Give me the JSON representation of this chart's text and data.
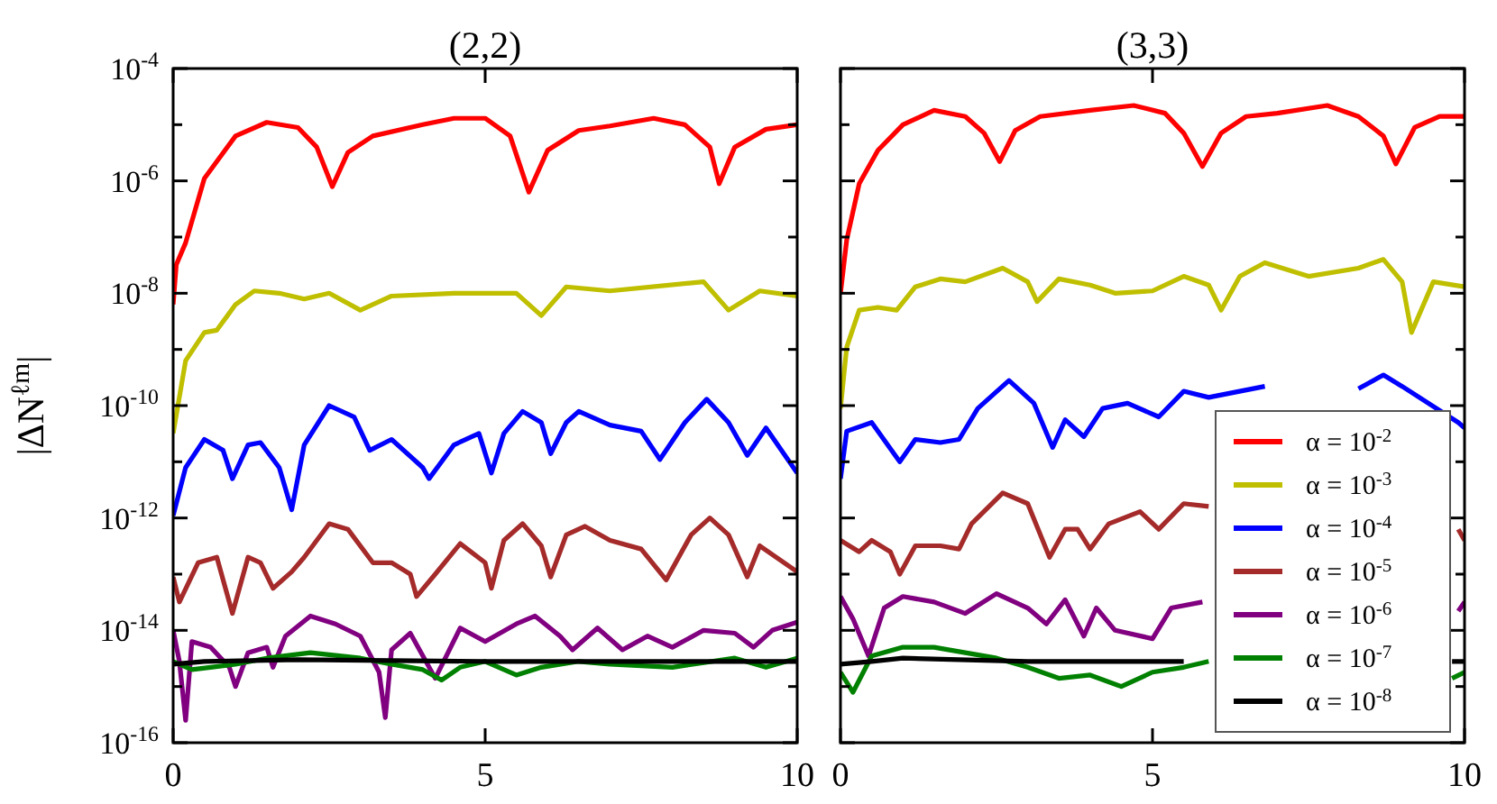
{
  "chart_data": [
    {
      "type": "line",
      "title": "(2,2)",
      "ylabel": "|ΔN$^{ℓm}$|",
      "log": "y",
      "xlim": [
        0,
        10
      ],
      "xticks": [
        0,
        5,
        10
      ],
      "ylim": [
        1e-16,
        0.0001
      ],
      "yticks": [
        {
          "value": 1e-16,
          "label": "10$^{-16}$"
        },
        {
          "value": 1e-15,
          "label": null
        },
        {
          "value": 1e-14,
          "label": "10$^{-14}$"
        },
        {
          "value": 1e-13,
          "label": null
        },
        {
          "value": 1e-12,
          "label": "10$^{-12}$"
        },
        {
          "value": 1e-11,
          "label": null
        },
        {
          "value": 1e-10,
          "label": "10$^{-10}$"
        },
        {
          "value": 1e-09,
          "label": null
        },
        {
          "value": 1e-08,
          "label": "10$^{-8}$"
        },
        {
          "value": 1e-07,
          "label": null
        },
        {
          "value": 1e-06,
          "label": "10$^{-6}$"
        },
        {
          "value": 1e-05,
          "label": null
        },
        {
          "value": 0.0001,
          "label": "10$^{-4}$"
        }
      ],
      "series": [
        {
          "color": "#ff0000",
          "x": [
            0,
            0.05,
            0.2,
            0.5,
            1,
            1.5,
            2,
            2.3,
            2.55,
            2.8,
            3.2,
            4,
            4.5,
            5,
            5.4,
            5.7,
            6,
            6.5,
            7,
            7.7,
            8.2,
            8.6,
            8.75,
            9,
            9.5,
            10
          ],
          "values": [
            6.3e-09,
            3.2e-08,
            7.9e-08,
            1.1e-06,
            6.3e-06,
            1.1e-05,
            8.9e-06,
            4e-06,
            7.9e-07,
            3.2e-06,
            6.3e-06,
            1e-05,
            1.3e-05,
            1.3e-05,
            6.3e-06,
            6.3e-07,
            3.5e-06,
            7.9e-06,
            9.5e-06,
            1.3e-05,
            1e-05,
            4e-06,
            8.9e-07,
            4e-06,
            8.3e-06,
            1e-05
          ]
        },
        {
          "color": "#bfbf00",
          "x": [
            0,
            0.2,
            0.5,
            0.7,
            1,
            1.3,
            1.7,
            2.1,
            2.5,
            3,
            3.5,
            4.5,
            5.5,
            5.9,
            6.3,
            7,
            8.5,
            8.9,
            9.4,
            10
          ],
          "values": [
            3.2e-11,
            6.3e-10,
            2e-09,
            2.2e-09,
            6.3e-09,
            1.1e-08,
            1e-08,
            7.9e-09,
            1e-08,
            5e-09,
            8.9e-09,
            1e-08,
            1e-08,
            4e-09,
            1.3e-08,
            1.1e-08,
            1.6e-08,
            5e-09,
            1.1e-08,
            8.9e-09
          ]
        },
        {
          "color": "#0000ff",
          "x": [
            0,
            0.2,
            0.5,
            0.8,
            0.95,
            1.2,
            1.4,
            1.7,
            1.9,
            2.1,
            2.5,
            2.9,
            3.15,
            3.5,
            4,
            4.1,
            4.5,
            4.9,
            5.1,
            5.3,
            5.6,
            5.9,
            6.05,
            6.3,
            6.5,
            7,
            7.5,
            7.8,
            8.2,
            8.55,
            8.9,
            9.2,
            9.5,
            10
          ],
          "values": [
            1.1e-12,
            7.9e-12,
            2.5e-11,
            1.6e-11,
            5e-12,
            2e-11,
            2.2e-11,
            7.9e-12,
            1.4e-12,
            2e-11,
            1e-10,
            6.3e-11,
            1.6e-11,
            2.5e-11,
            7.9e-12,
            5e-12,
            2e-11,
            3.2e-11,
            6.3e-12,
            3.2e-11,
            7.9e-11,
            5e-11,
            1.4e-11,
            5e-11,
            7.9e-11,
            4.5e-11,
            3.5e-11,
            1.1e-11,
            5e-11,
            1.3e-10,
            5e-11,
            1.3e-11,
            4e-11,
            6.3e-12
          ]
        },
        {
          "color": "#a52a2a",
          "x": [
            0,
            0.1,
            0.4,
            0.7,
            0.95,
            1.2,
            1.4,
            1.6,
            1.9,
            2.1,
            2.5,
            2.8,
            3.2,
            3.5,
            3.8,
            3.9,
            4.2,
            4.6,
            5,
            5.1,
            5.3,
            5.6,
            5.9,
            6.05,
            6.3,
            6.6,
            7,
            7.5,
            7.9,
            8.3,
            8.6,
            8.9,
            9.2,
            9.4,
            10
          ],
          "values": [
            8.9e-14,
            3.2e-14,
            1.6e-13,
            2e-13,
            2e-14,
            2e-13,
            1.6e-13,
            5.6e-14,
            1.1e-13,
            2e-13,
            7.9e-13,
            6.3e-13,
            1.6e-13,
            1.6e-13,
            1e-13,
            4e-14,
            1e-13,
            3.5e-13,
            1.6e-13,
            5.6e-14,
            4e-13,
            7.9e-13,
            3.2e-13,
            8.9e-14,
            5e-13,
            7.1e-13,
            4e-13,
            2.8e-13,
            7.9e-14,
            5e-13,
            1e-12,
            5e-13,
            8.9e-14,
            3.2e-13,
            1.1e-13
          ]
        },
        {
          "color": "#800080",
          "x": [
            0,
            0.1,
            0.2,
            0.3,
            0.6,
            0.9,
            1,
            1.2,
            1.5,
            1.6,
            1.8,
            2.2,
            2.6,
            3,
            3.3,
            3.4,
            3.5,
            3.8,
            4.2,
            4.6,
            5,
            5.5,
            5.8,
            6.2,
            6.4,
            6.8,
            7.2,
            7.6,
            8,
            8.5,
            9,
            9.3,
            9.6,
            10
          ],
          "values": [
            1e-14,
            2.8e-15,
            2.5e-16,
            6.3e-15,
            5e-15,
            2.2e-15,
            1e-15,
            4e-15,
            5e-15,
            2.2e-15,
            7.9e-15,
            1.8e-14,
            1.3e-14,
            7.9e-15,
            1.8e-15,
            2.8e-16,
            4.5e-15,
            8.9e-15,
            1.4e-15,
            1.1e-14,
            6.3e-15,
            1.3e-14,
            1.8e-14,
            7.9e-15,
            4.5e-15,
            1.1e-14,
            4.5e-15,
            7.9e-15,
            5e-15,
            1e-14,
            8.9e-15,
            5e-15,
            1e-14,
            1.4e-14
          ]
        },
        {
          "color": "#008000",
          "x": [
            0,
            0.3,
            0.6,
            1,
            1.5,
            2.2,
            3,
            3.5,
            4,
            4.3,
            4.6,
            5,
            5.5,
            5.9,
            6.5,
            7,
            8,
            9,
            9.5,
            10
          ],
          "values": [
            2.8e-15,
            2e-15,
            2.2e-15,
            2.5e-15,
            3.2e-15,
            4e-15,
            3.2e-15,
            2.5e-15,
            2e-15,
            1.3e-15,
            2.2e-15,
            2.8e-15,
            1.6e-15,
            2.2e-15,
            2.8e-15,
            2.5e-15,
            2.2e-15,
            3.2e-15,
            2.2e-15,
            3.2e-15
          ]
        },
        {
          "color": "#000000",
          "x": [
            0,
            0.5,
            2,
            5,
            8,
            10
          ],
          "values": [
            2.5e-15,
            2.8e-15,
            3e-15,
            2.8e-15,
            2.8e-15,
            2.8e-15
          ]
        }
      ]
    },
    {
      "type": "line",
      "title": "(3,3)",
      "log": "y",
      "tick_labels": "x",
      "legend": "bottom right",
      "xlim": [
        0,
        10
      ],
      "xticks": [
        0,
        5,
        10
      ],
      "ylim": [
        1e-16,
        0.0001
      ],
      "yticks": [
        {
          "value": 1e-16,
          "label": null
        },
        {
          "value": 1e-15,
          "label": null
        },
        {
          "value": 1e-14,
          "label": null
        },
        {
          "value": 1e-13,
          "label": null
        },
        {
          "value": 1e-12,
          "label": null
        },
        {
          "value": 1e-11,
          "label": null
        },
        {
          "value": 1e-10,
          "label": null
        },
        {
          "value": 1e-09,
          "label": null
        },
        {
          "value": 1e-08,
          "label": null
        },
        {
          "value": 1e-07,
          "label": null
        },
        {
          "value": 1e-06,
          "label": null
        },
        {
          "value": 1e-05,
          "label": null
        },
        {
          "value": 0.0001,
          "label": null
        }
      ],
      "series": [
        {
          "name": "α = 10$^{-2}$",
          "color": "#ff0000",
          "x": [
            0,
            0.1,
            0.3,
            0.6,
            1,
            1.5,
            2,
            2.3,
            2.55,
            2.8,
            3.2,
            4,
            4.7,
            5.2,
            5.5,
            5.8,
            6.1,
            6.5,
            7,
            7.8,
            8.3,
            8.7,
            8.9,
            9.2,
            9.6,
            10
          ],
          "values": [
            1e-08,
            8.9e-08,
            8.9e-07,
            3.5e-06,
            1e-05,
            1.8e-05,
            1.4e-05,
            7.1e-06,
            2.2e-06,
            7.9e-06,
            1.4e-05,
            1.8e-05,
            2.2e-05,
            1.6e-05,
            7.1e-06,
            1.8e-06,
            7.1e-06,
            1.4e-05,
            1.6e-05,
            2.2e-05,
            1.4e-05,
            6.3e-06,
            2e-06,
            8.9e-06,
            1.4e-05,
            1.4e-05
          ]
        },
        {
          "name": "α = 10$^{-3}$",
          "color": "#bfbf00",
          "x": [
            0,
            0.1,
            0.3,
            0.6,
            0.9,
            1.2,
            1.6,
            2,
            2.6,
            3,
            3.15,
            3.5,
            4,
            4.4,
            5,
            5.5,
            5.9,
            6.1,
            6.4,
            6.8,
            7.5,
            8.3,
            8.7,
            9,
            9.15,
            9.5,
            10
          ],
          "values": [
            8.9e-11,
            1.1e-09,
            5e-09,
            5.6e-09,
            5e-09,
            1.3e-08,
            1.8e-08,
            1.6e-08,
            2.8e-08,
            1.6e-08,
            7.1e-09,
            1.8e-08,
            1.4e-08,
            1e-08,
            1.1e-08,
            2e-08,
            1.4e-08,
            5e-09,
            2e-08,
            3.5e-08,
            2e-08,
            2.8e-08,
            4e-08,
            1.6e-08,
            2e-09,
            1.6e-08,
            1.3e-08
          ]
        },
        {
          "name": "α = 10$^{-4}$",
          "color": "#0000ff",
          "x": [
            0,
            0.1,
            0.5,
            0.95,
            1.2,
            1.6,
            1.9,
            2.2,
            2.7,
            3.1,
            3.4,
            3.6,
            3.9,
            4.2,
            4.6,
            5.1,
            5.5,
            5.9,
            6.8,
            7.5,
            8.3,
            8.7,
            9,
            9.9,
            10
          ],
          "values": [
            5e-12,
            3.5e-11,
            5e-11,
            1e-11,
            2.5e-11,
            2.2e-11,
            2.5e-11,
            8.9e-11,
            2.8e-10,
            1.1e-10,
            1.8e-11,
            5.6e-11,
            2.8e-11,
            8.9e-11,
            1.1e-10,
            6.3e-11,
            1.8e-10,
            1.4e-10,
            2.2e-10,
            null,
            2e-10,
            3.5e-10,
            2.2e-10,
            5e-11,
            4e-11
          ]
        },
        {
          "name": "α = 10$^{-5}$",
          "color": "#a52a2a",
          "x": [
            0,
            0.3,
            0.5,
            0.8,
            0.95,
            1.2,
            1.6,
            1.9,
            2.1,
            2.6,
            3,
            3.35,
            3.6,
            3.8,
            4,
            4.3,
            4.8,
            5.1,
            5.5,
            5.9,
            6.2,
            9.9,
            10
          ],
          "values": [
            4e-13,
            2.5e-13,
            4e-13,
            2.5e-13,
            1e-13,
            3.2e-13,
            3.2e-13,
            2.8e-13,
            7.9e-13,
            2.8e-12,
            1.8e-12,
            2e-13,
            6.3e-13,
            6.3e-13,
            2.8e-13,
            7.9e-13,
            1.3e-12,
            6.3e-13,
            1.8e-12,
            1.6e-12,
            null,
            6.3e-13,
            4e-13
          ]
        },
        {
          "name": "α = 10$^{-6}$",
          "color": "#800080",
          "x": [
            0,
            0.2,
            0.45,
            0.7,
            1,
            1.5,
            2,
            2.5,
            3,
            3.3,
            3.6,
            3.9,
            4.1,
            4.4,
            5,
            5.3,
            5.8,
            6.2,
            9.9,
            10
          ],
          "values": [
            4e-14,
            1.6e-14,
            3.5e-15,
            2.5e-14,
            4e-14,
            3.2e-14,
            2e-14,
            4.5e-14,
            2.5e-14,
            1.3e-14,
            3.5e-14,
            7.9e-15,
            2.5e-14,
            1e-14,
            7.1e-15,
            2.5e-14,
            3.2e-14,
            null,
            2.2e-14,
            3.2e-14
          ]
        },
        {
          "name": "α = 10$^{-7}$",
          "color": "#008000",
          "x": [
            0,
            0.2,
            0.5,
            1,
            1.5,
            2,
            2.5,
            3,
            3.5,
            4,
            4.5,
            5,
            5.5,
            5.9,
            6.2,
            9.8,
            10
          ],
          "values": [
            1.8e-15,
            7.9e-16,
            3.5e-15,
            5e-15,
            5e-15,
            4e-15,
            3.2e-15,
            2.2e-15,
            1.4e-15,
            1.6e-15,
            1e-15,
            1.8e-15,
            2.2e-15,
            2.8e-15,
            null,
            1.4e-15,
            1.8e-15
          ]
        },
        {
          "name": "α = 10$^{-8}$",
          "color": "#000000",
          "x": [
            0,
            0.5,
            1,
            3,
            5.5,
            6.2,
            9.8,
            10
          ],
          "values": [
            2.5e-15,
            2.8e-15,
            3.2e-15,
            2.8e-15,
            2.8e-15,
            null,
            2.8e-15,
            2.8e-15
          ]
        }
      ]
    }
  ]
}
